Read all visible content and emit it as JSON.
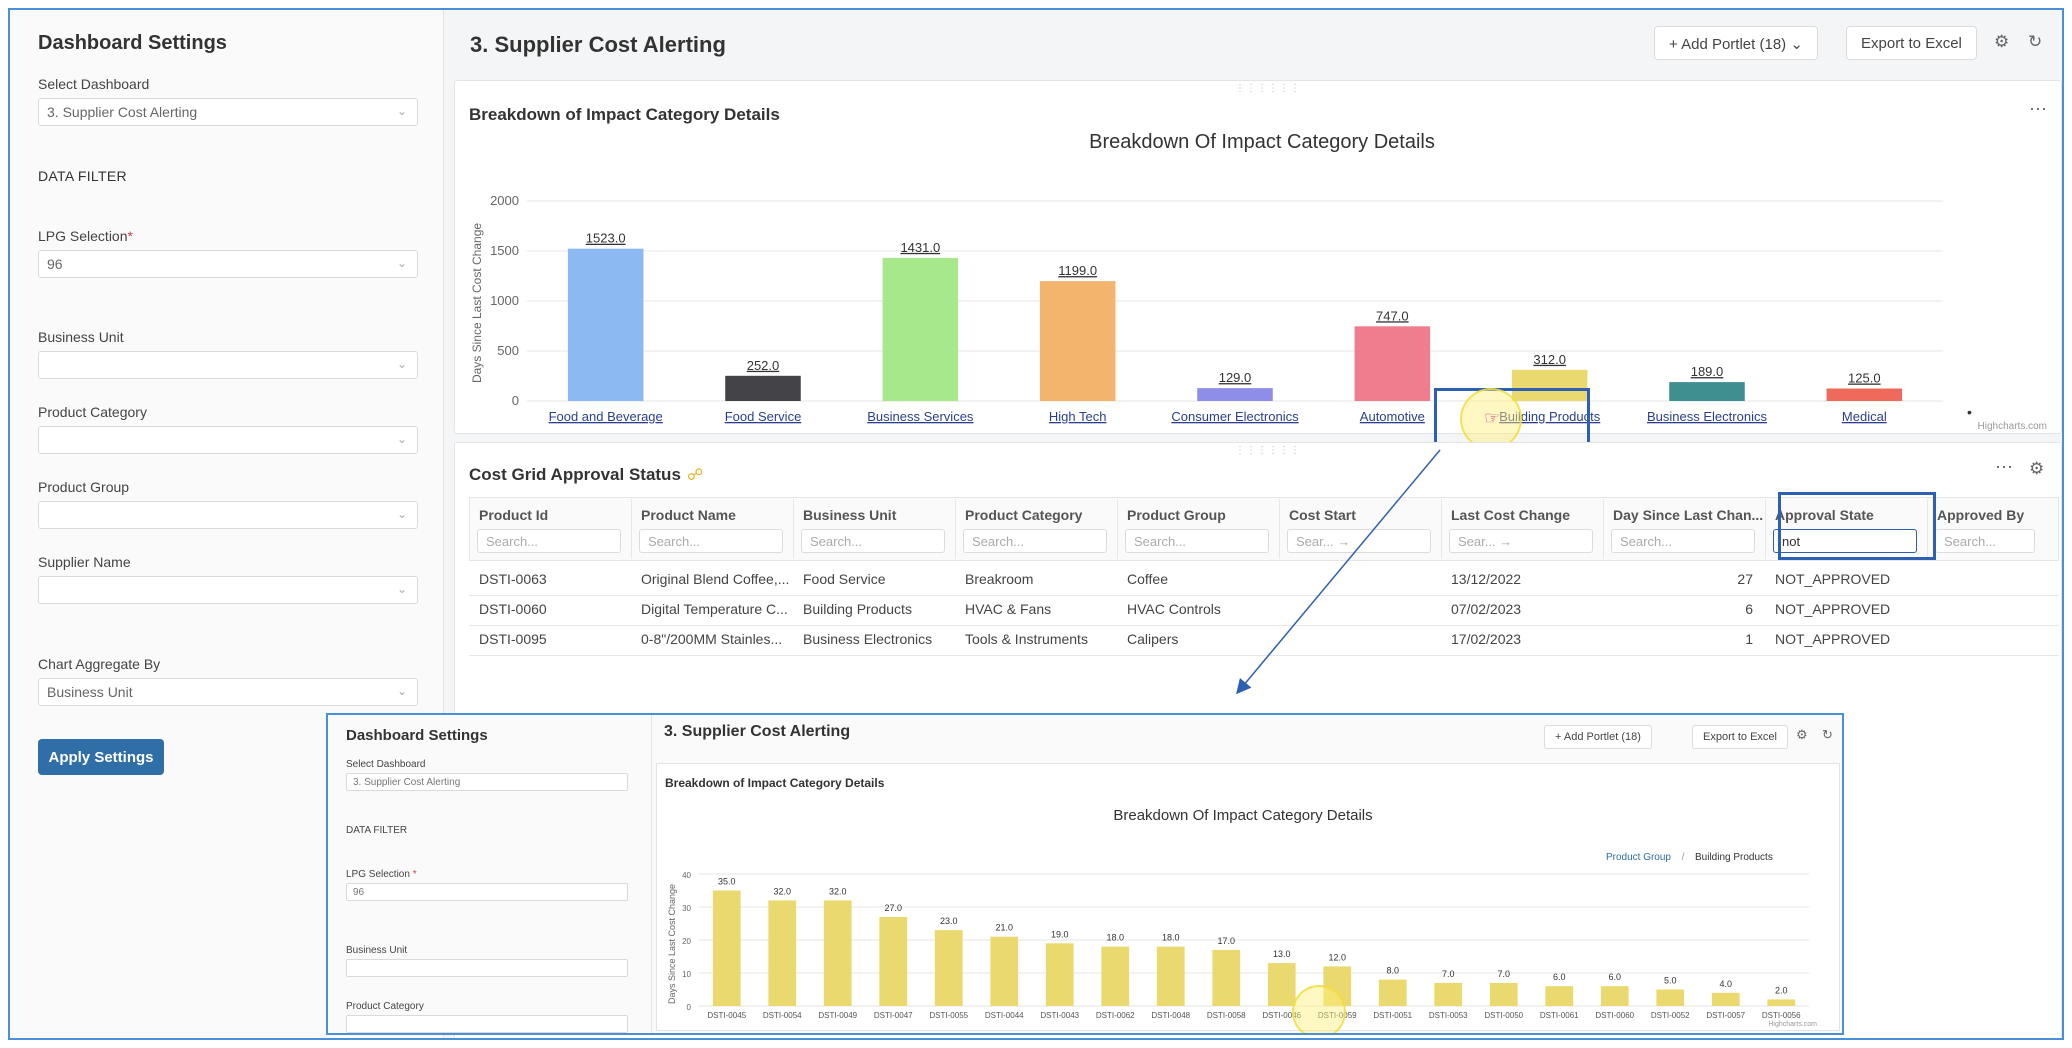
{
  "sidebar": {
    "title": "Dashboard Settings",
    "select_dashboard_label": "Select Dashboard",
    "select_dashboard_value": "3. Supplier Cost Alerting",
    "data_filter_label": "DATA FILTER",
    "lpg_label": "LPG Selection",
    "lpg_required": "*",
    "lpg_value": "96",
    "business_unit_label": "Business Unit",
    "product_category_label": "Product Category",
    "product_group_label": "Product Group",
    "supplier_name_label": "Supplier Name",
    "chart_aggregate_label": "Chart Aggregate By",
    "chart_aggregate_value": "Business Unit",
    "apply_label": "Apply Settings"
  },
  "header": {
    "title": "3. Supplier Cost Alerting",
    "add_portlet_label": "+ Add Portlet (18)",
    "export_label": "Export to Excel",
    "settings_icon": "gear-icon",
    "refresh_icon": "refresh-icon"
  },
  "chart_portlet": {
    "title": "Breakdown of Impact Category Details",
    "credit": "Highcharts.com",
    "more_label": "•"
  },
  "chart_data": [
    {
      "type": "bar",
      "title": "Breakdown Of Impact Category Details",
      "ylabel": "Days Since Last Cost Change",
      "ylim": [
        0,
        2000
      ],
      "yticks": [
        "0",
        "500",
        "1000",
        "1500",
        "2000"
      ],
      "categories": [
        "Food and Beverage",
        "Food Service",
        "Business Services",
        "High Tech",
        "Consumer Electronics",
        "Automotive",
        "Building Products",
        "Business Electronics",
        "Medical"
      ],
      "values": [
        1523.0,
        252.0,
        1431.0,
        1199.0,
        129.0,
        747.0,
        312.0,
        189.0,
        125.0
      ],
      "labels": [
        "1523.0",
        "252.0",
        "1431.0",
        "1199.0",
        "129.0",
        "747.0",
        "312.0",
        "189.0",
        "125.0"
      ],
      "colors": [
        "#8db9f2",
        "#444448",
        "#a7e88d",
        "#f3b46e",
        "#8e8ee8",
        "#ef7d8e",
        "#e9d96e",
        "#3f8f8f",
        "#ee6a5a"
      ],
      "grid": true,
      "legend": "none"
    },
    {
      "type": "bar",
      "title": "Breakdown Of Impact Category Details",
      "ylabel": "Days Since Last Cost Change",
      "ylim": [
        0,
        40
      ],
      "yticks": [
        "0",
        "10",
        "20",
        "30",
        "40"
      ],
      "categories": [
        "DSTI-0045",
        "DSTI-0054",
        "DSTI-0049",
        "DSTI-0047",
        "DSTI-0055",
        "DSTI-0044",
        "DSTI-0043",
        "DSTI-0062",
        "DSTI-0048",
        "DSTI-0058",
        "DSTI-0046",
        "DSTI-0059",
        "DSTI-0051",
        "DSTI-0053",
        "DSTI-0050",
        "DSTI-0061",
        "DSTI-0060",
        "DSTI-0052",
        "DSTI-0057",
        "DSTI-0056"
      ],
      "values": [
        35.0,
        32.0,
        32.0,
        27.0,
        23.0,
        21.0,
        19.0,
        18.0,
        18.0,
        17.0,
        13.0,
        12.0,
        8.0,
        7.0,
        7.0,
        6.0,
        6.0,
        5.0,
        4.0,
        2.0
      ],
      "labels": [
        "35.0",
        "32.0",
        "32.0",
        "27.0",
        "23.0",
        "21.0",
        "19.0",
        "18.0",
        "18.0",
        "17.0",
        "13.0",
        "12.0",
        "8.0",
        "7.0",
        "7.0",
        "6.0",
        "6.0",
        "5.0",
        "4.0",
        "2.0"
      ],
      "colors": [
        "#e9d96e"
      ],
      "grid": true,
      "legend": "none",
      "breadcrumb": [
        "Product Group",
        "/",
        "Building Products"
      ]
    }
  ],
  "grid_portlet": {
    "title": "Cost Grid Approval Status",
    "columns": [
      "Product Id",
      "Product Name",
      "Business Unit",
      "Product Category",
      "Product Group",
      "Cost Start",
      "Last Cost Change",
      "Day Since Last Chan...",
      "Approval State",
      "Approved By"
    ],
    "search_placeholder": "Search...",
    "search_short": "Sear...",
    "date_arrow": "→",
    "approval_filter_value": "not",
    "rows": [
      [
        "DSTI-0063",
        "Original Blend Coffee,...",
        "Food Service",
        "Breakroom",
        "Coffee",
        "",
        "13/12/2022",
        "27",
        "NOT_APPROVED",
        ""
      ],
      [
        "DSTI-0060",
        "Digital Temperature C...",
        "Building Products",
        "HVAC & Fans",
        "HVAC Controls",
        "",
        "07/02/2023",
        "6",
        "NOT_APPROVED",
        ""
      ],
      [
        "DSTI-0095",
        "0-8\"/200MM Stainles...",
        "Business Electronics",
        "Tools & Instruments",
        "Calipers",
        "",
        "17/02/2023",
        "1",
        "NOT_APPROVED",
        ""
      ]
    ]
  },
  "inset": {
    "sidebar_title": "Dashboard Settings",
    "select_dashboard_label": "Select Dashboard",
    "select_dashboard_value": "3. Supplier Cost Alerting",
    "data_filter_label": "DATA FILTER",
    "lpg_label": "LPG Selection",
    "lpg_required": "*",
    "lpg_value": "96",
    "business_unit_label": "Business Unit",
    "product_category_label": "Product Category",
    "page_title": "3. Supplier Cost Alerting",
    "add_portlet_label": "+ Add Portlet (18)",
    "export_label": "Export to Excel",
    "portlet_title": "Breakdown of Impact Category Details",
    "credit": "Highcharts.com"
  }
}
